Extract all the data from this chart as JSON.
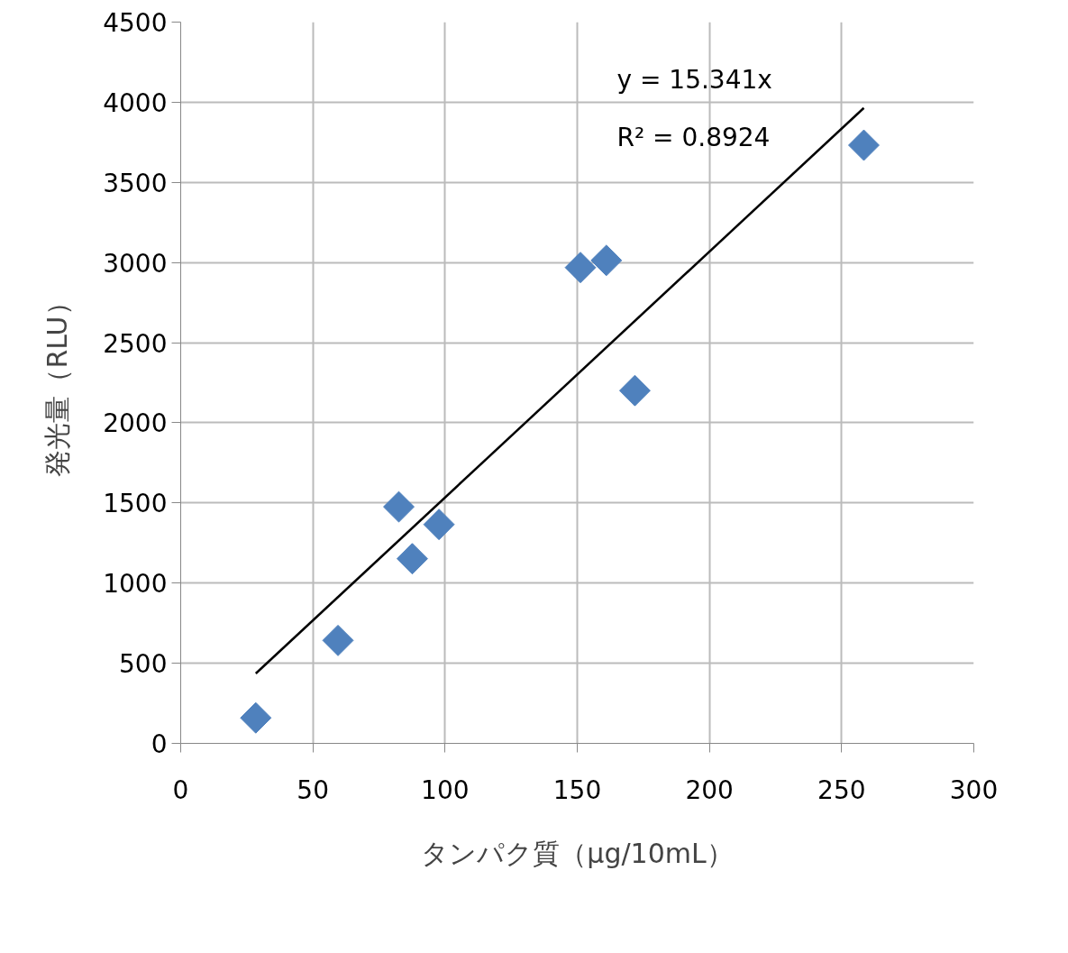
{
  "chart_data": {
    "type": "scatter",
    "xlabel": "タンパク質（μg/10mL）",
    "ylabel": "発光量（RLU）",
    "series": [
      {
        "color": "#4f81bd",
        "marker": "diamond",
        "x": [
          28.4,
          59.5,
          82.5,
          87.6,
          97.7,
          151.2,
          161.0,
          171.8,
          258.4
        ],
        "values": [
          159,
          642,
          1476,
          1152,
          1366,
          2969,
          3013,
          2201,
          3732
        ]
      },
      {
        "type": "line",
        "color": "#000000",
        "marker": "none",
        "x": [
          28.4,
          258.4
        ],
        "values": [
          436,
          3964
        ]
      }
    ],
    "annotations": [
      "y = 15.341x",
      "R² = 0.8924"
    ],
    "xlim": [
      0,
      300
    ],
    "xticks": [
      0,
      50,
      100,
      150,
      200,
      250,
      300
    ],
    "ylim": [
      0,
      4500
    ],
    "yticks": [
      0,
      500,
      1000,
      1500,
      2000,
      2500,
      3000,
      3500,
      4000,
      4500
    ],
    "grid": true
  }
}
